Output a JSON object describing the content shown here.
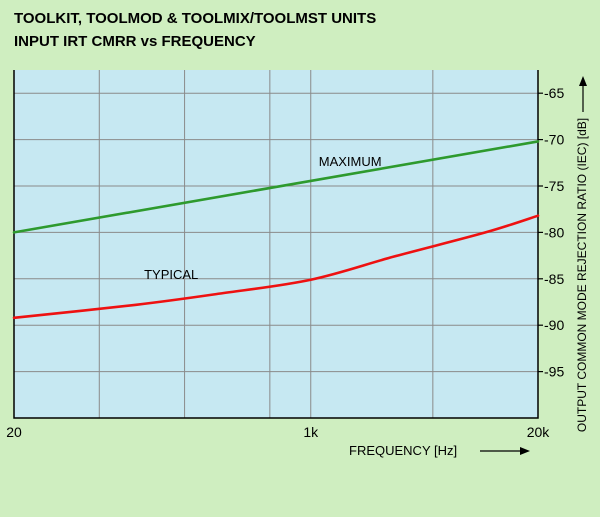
{
  "chart_data": {
    "type": "line",
    "title": [
      "TOOLKIT, TOOLMOD & TOOLMIX/TOOLMST UNITS",
      "INPUT IRT CMRR  vs FREQUENCY"
    ],
    "xlabel": "FREQUENCY  [Hz]",
    "ylabel": "OUTPUT COMMON MODE REJECTION RATIO (IEC) [dB]",
    "x_scale": "log",
    "xlim": [
      20,
      20000
    ],
    "x_ticks": [
      20,
      1000,
      20000
    ],
    "x_tick_labels": [
      "20",
      "1k",
      "20k"
    ],
    "x_gridlines": [
      20,
      61.56,
      189.5,
      583.2,
      1000,
      5000,
      20000
    ],
    "ylim": [
      -100,
      -62.5
    ],
    "y_ticks": [
      -95,
      -90,
      -85,
      -80,
      -75,
      -70,
      -65
    ],
    "y_tick_labels": [
      "-95",
      "-90",
      "-85",
      "-80",
      "-75",
      "-70",
      "-65"
    ],
    "grid": true,
    "series": [
      {
        "name": "MAXIMUM",
        "color": "#2e9a2e",
        "x": [
          20,
          20000
        ],
        "y": [
          -80,
          -70.2
        ]
      },
      {
        "name": "TYPICAL",
        "color": "#ee1111",
        "x": [
          20,
          100,
          300,
          1000,
          3000,
          10000,
          20000
        ],
        "y": [
          -89.2,
          -87.8,
          -86.6,
          -85.1,
          -82.6,
          -80.0,
          -78.2
        ]
      }
    ]
  },
  "colors": {
    "page_background": "#cfeec0",
    "plot_background": "#c6e8f2",
    "grid": "#8a8a8a"
  }
}
